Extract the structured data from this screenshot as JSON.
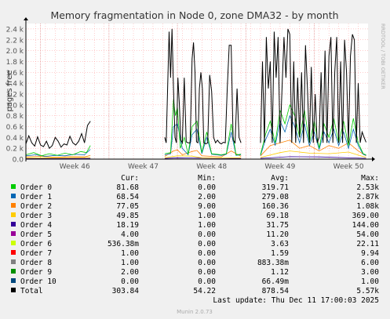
{
  "colors": {
    "background": "#f0f0f0",
    "plot_background": "#ffffff",
    "grid_minor": "#ff9999",
    "grid_major": "#e08080",
    "axis": "#000000",
    "text": "#333333"
  },
  "watermark": "RRDTOOL / TOBI OETIKER",
  "footer": "Munin 2.0.73",
  "last_update": "Last update: Thu Dec 11 17:00:03 2025",
  "legend_headers": [
    "Cur:",
    "Min:",
    "Avg:",
    "Max:"
  ],
  "legend_rows": [
    {
      "name": "Order 0",
      "color": "#00cc00",
      "cur": "81.68",
      "min": "0.00",
      "avg": "319.71",
      "max": "2.53k"
    },
    {
      "name": "Order 1",
      "color": "#0066b3",
      "cur": "68.54",
      "min": "2.00",
      "avg": "279.08",
      "max": "2.87k"
    },
    {
      "name": "Order 2",
      "color": "#ff8000",
      "cur": "77.05",
      "min": "9.00",
      "avg": "160.36",
      "max": "1.08k"
    },
    {
      "name": "Order 3",
      "color": "#ffcc00",
      "cur": "49.85",
      "min": "1.00",
      "avg": "69.18",
      "max": "369.00"
    },
    {
      "name": "Order 4",
      "color": "#330099",
      "cur": "18.19",
      "min": "1.00",
      "avg": "31.75",
      "max": "144.00"
    },
    {
      "name": "Order 5",
      "color": "#990099",
      "cur": "4.00",
      "min": "0.00",
      "avg": "11.20",
      "max": "54.00"
    },
    {
      "name": "Order 6",
      "color": "#ccff00",
      "cur": "536.38m",
      "min": "0.00",
      "avg": "3.63",
      "max": "22.11"
    },
    {
      "name": "Order 7",
      "color": "#ff0000",
      "cur": "1.00",
      "min": "0.00",
      "avg": "1.59",
      "max": "9.94"
    },
    {
      "name": "Order 8",
      "color": "#808080",
      "cur": "1.00",
      "min": "0.00",
      "avg": "883.38m",
      "max": "6.00"
    },
    {
      "name": "Order 9",
      "color": "#008f00",
      "cur": "2.00",
      "min": "0.00",
      "avg": "1.12",
      "max": "3.00"
    },
    {
      "name": "Order 10",
      "color": "#00487d",
      "cur": "0.00",
      "min": "0.00",
      "avg": "66.49m",
      "max": "1.00"
    },
    {
      "name": "Total",
      "color": "#000000",
      "cur": "303.84",
      "min": "54.22",
      "avg": "878.54",
      "max": "5.57k"
    }
  ],
  "chart_data": {
    "type": "line",
    "title": "Memory fragmentation in Node 0, zone DMA32 - by month",
    "ylabel": "pages free",
    "xlabel": "",
    "ylim": [
      0,
      2500
    ],
    "yticks": [
      0,
      200,
      400,
      600,
      800,
      1000,
      1200,
      1400,
      1600,
      1800,
      2000,
      2200,
      2400
    ],
    "ytick_labels": [
      "0.0",
      "0.2 k",
      "0.4 k",
      "0.6 k",
      "0.8 k",
      "1.0 k",
      "1.2 k",
      "1.4 k",
      "1.6 k",
      "1.8 k",
      "2.0 k",
      "2.2 k",
      "2.4 k"
    ],
    "xlim": [
      0,
      35
    ],
    "x_unit": "days",
    "xticks": [
      5,
      12,
      19,
      26,
      33
    ],
    "xtick_labels": [
      "Week 46",
      "Week 47",
      "Week 48",
      "Week 49",
      "Week 50"
    ],
    "grid": true,
    "series": [
      {
        "name": "Total",
        "color": "#000000",
        "width": 1.0,
        "segments": [
          {
            "x": [
              0.0,
              0.3,
              0.6,
              0.9,
              1.2,
              1.5,
              1.8,
              2.1,
              2.4,
              2.7,
              3.0,
              3.3,
              3.6,
              3.9,
              4.2,
              4.5,
              4.8,
              5.1,
              5.4,
              5.7,
              6.0,
              6.3,
              6.6
            ],
            "y": [
              280,
              430,
              300,
              240,
              410,
              260,
              230,
              330,
              200,
              250,
              400,
              330,
              220,
              280,
              260,
              420,
              300,
              260,
              330,
              470,
              300,
              620,
              700
            ]
          },
          {
            "x": [
              14.2,
              14.35,
              14.5,
              14.65,
              14.8,
              14.95,
              15.1,
              15.25,
              15.4,
              15.55,
              15.7,
              15.85,
              16.0,
              16.2,
              16.4,
              16.6,
              16.8,
              17.0,
              17.15,
              17.3,
              17.45,
              17.6,
              17.75,
              17.9,
              18.05,
              18.2,
              18.4,
              18.6,
              18.8,
              19.0,
              19.2,
              19.4,
              19.6,
              19.8,
              20.0,
              20.2,
              20.4,
              20.6,
              20.8,
              21.0,
              21.2,
              21.4,
              21.6,
              21.8,
              22.0
            ],
            "y": [
              400,
              300,
              1300,
              2350,
              1500,
              2400,
              1300,
              400,
              300,
              1500,
              1000,
              350,
              300,
              1500,
              320,
              300,
              300,
              1850,
              2150,
              1600,
              320,
              300,
              1300,
              1600,
              1300,
              300,
              280,
              300,
              1550,
              1250,
              400,
              300,
              350,
              300,
              280,
              310,
              300,
              1300,
              2100,
              2100,
              350,
              300,
              1300,
              400,
              300
            ]
          },
          {
            "x": [
              24.0,
              24.2,
              24.4,
              24.6,
              24.8,
              25.0,
              25.2,
              25.4,
              25.6,
              25.8,
              26.0,
              26.2,
              26.4,
              26.6,
              26.8,
              27.0,
              27.2,
              27.4,
              27.6,
              27.8,
              28.0,
              28.2,
              28.4,
              28.6,
              28.8,
              29.0,
              29.2,
              29.4,
              29.6,
              29.8,
              30.0,
              30.2,
              30.4,
              30.6,
              30.8,
              31.0,
              31.2,
              31.4,
              31.6,
              31.8,
              32.0,
              32.2,
              32.4,
              32.6,
              32.8,
              33.0,
              33.2,
              33.4,
              33.6,
              33.8,
              34.0,
              34.2,
              34.4,
              34.6,
              34.8
            ],
            "y": [
              300,
              1800,
              300,
              2250,
              1300,
              1800,
              300,
              2350,
              1500,
              2250,
              300,
              1300,
              2250,
              1500,
              2400,
              2300,
              300,
              1800,
              300,
              1500,
              400,
              1600,
              300,
              2100,
              1300,
              300,
              1700,
              300,
              1200,
              300,
              400,
              1600,
              300,
              2000,
              300,
              1900,
              2250,
              300,
              1600,
              2250,
              300,
              1800,
              300,
              2200,
              1600,
              300,
              1900,
              2300,
              2200,
              300,
              1400,
              300,
              500,
              400,
              310
            ]
          }
        ]
      },
      {
        "name": "Order 0",
        "color": "#00cc00",
        "width": 0.8,
        "segments": [
          {
            "x": [
              0.0,
              0.8,
              1.6,
              2.4,
              3.2,
              4.0,
              4.8,
              5.6,
              6.2,
              6.6
            ],
            "y": [
              80,
              120,
              60,
              100,
              70,
              110,
              80,
              140,
              120,
              250
            ]
          },
          {
            "x": [
              14.2,
              14.8,
              15.1,
              15.3,
              15.5,
              15.8,
              16.2,
              16.6,
              17.0,
              17.5,
              18.0,
              18.5,
              19.0,
              19.5,
              20.0,
              20.5,
              21.0,
              21.5,
              22.0
            ],
            "y": [
              100,
              120,
              1100,
              800,
              950,
              200,
              400,
              90,
              600,
              700,
              120,
              500,
              100,
              90,
              80,
              100,
              650,
              80,
              90
            ]
          },
          {
            "x": [
              24.0,
              24.5,
              25.0,
              25.5,
              26.0,
              26.5,
              27.0,
              27.5,
              28.0,
              28.5,
              29.0,
              29.5,
              30.0,
              30.5,
              31.0,
              31.5,
              32.0,
              32.5,
              33.0,
              33.5,
              34.0,
              34.5,
              34.8
            ],
            "y": [
              80,
              450,
              700,
              300,
              900,
              650,
              1000,
              800,
              400,
              900,
              300,
              700,
              200,
              650,
              400,
              750,
              300,
              700,
              250,
              750,
              300,
              100,
              80
            ]
          }
        ]
      },
      {
        "name": "Order 1",
        "color": "#0066b3",
        "width": 0.8,
        "segments": [
          {
            "x": [
              0.0,
              1.0,
              2.0,
              3.0,
              4.0,
              5.0,
              6.0,
              6.6
            ],
            "y": [
              60,
              80,
              50,
              70,
              60,
              90,
              80,
              180
            ]
          },
          {
            "x": [
              14.2,
              14.8,
              15.1,
              15.5,
              16.0,
              16.6,
              17.0,
              17.5,
              18.0,
              18.5,
              19.0,
              19.5,
              20.0,
              20.5,
              21.0,
              21.5,
              22.0
            ],
            "y": [
              80,
              100,
              600,
              650,
              200,
              80,
              450,
              550,
              100,
              400,
              90,
              80,
              70,
              90,
              500,
              70,
              80
            ]
          },
          {
            "x": [
              24.0,
              24.5,
              25.0,
              25.5,
              26.0,
              26.5,
              27.0,
              27.5,
              28.0,
              28.5,
              29.0,
              29.5,
              30.0,
              30.5,
              31.0,
              31.5,
              32.0,
              32.5,
              33.0,
              33.5,
              34.0,
              34.5,
              34.8
            ],
            "y": [
              70,
              350,
              550,
              250,
              700,
              500,
              800,
              600,
              300,
              650,
              250,
              500,
              180,
              500,
              300,
              550,
              250,
              500,
              200,
              550,
              250,
              90,
              70
            ]
          }
        ]
      },
      {
        "name": "Order 2",
        "color": "#ff8000",
        "width": 0.8,
        "segments": [
          {
            "x": [
              0.0,
              1.5,
              3.0,
              4.5,
              6.0,
              6.6
            ],
            "y": [
              40,
              50,
              35,
              45,
              40,
              70
            ]
          },
          {
            "x": [
              14.2,
              15.1,
              15.5,
              16.0,
              17.0,
              17.5,
              18.0,
              19.0,
              20.0,
              21.0,
              22.0
            ],
            "y": [
              50,
              150,
              170,
              80,
              140,
              160,
              60,
              50,
              40,
              150,
              50
            ]
          },
          {
            "x": [
              24.0,
              25.0,
              26.0,
              27.0,
              28.0,
              29.0,
              30.0,
              31.0,
              32.0,
              33.0,
              34.0,
              34.8
            ],
            "y": [
              60,
              250,
              300,
              350,
              200,
              250,
              150,
              250,
              200,
              300,
              150,
              60
            ]
          }
        ]
      },
      {
        "name": "Order 3",
        "color": "#ffcc00",
        "width": 0.8,
        "segments": [
          {
            "x": [
              0.0,
              3.0,
              6.6
            ],
            "y": [
              20,
              25,
              30
            ]
          },
          {
            "x": [
              14.2,
              15.5,
              17.0,
              18.0,
              20.0,
              22.0
            ],
            "y": [
              25,
              60,
              55,
              25,
              20,
              25
            ]
          },
          {
            "x": [
              24.0,
              26.0,
              27.0,
              29.0,
              31.0,
              33.0,
              34.8
            ],
            "y": [
              30,
              120,
              150,
              110,
              100,
              130,
              30
            ]
          }
        ]
      },
      {
        "name": "Order 4",
        "color": "#330099",
        "width": 0.8,
        "segments": [
          {
            "x": [
              0.0,
              6.6
            ],
            "y": [
              10,
              12
            ]
          },
          {
            "x": [
              14.2,
              15.5,
              17.0,
              22.0
            ],
            "y": [
              12,
              25,
              20,
              12
            ]
          },
          {
            "x": [
              24.0,
              27.0,
              30.0,
              34.8
            ],
            "y": [
              15,
              45,
              40,
              15
            ]
          }
        ]
      }
    ]
  }
}
